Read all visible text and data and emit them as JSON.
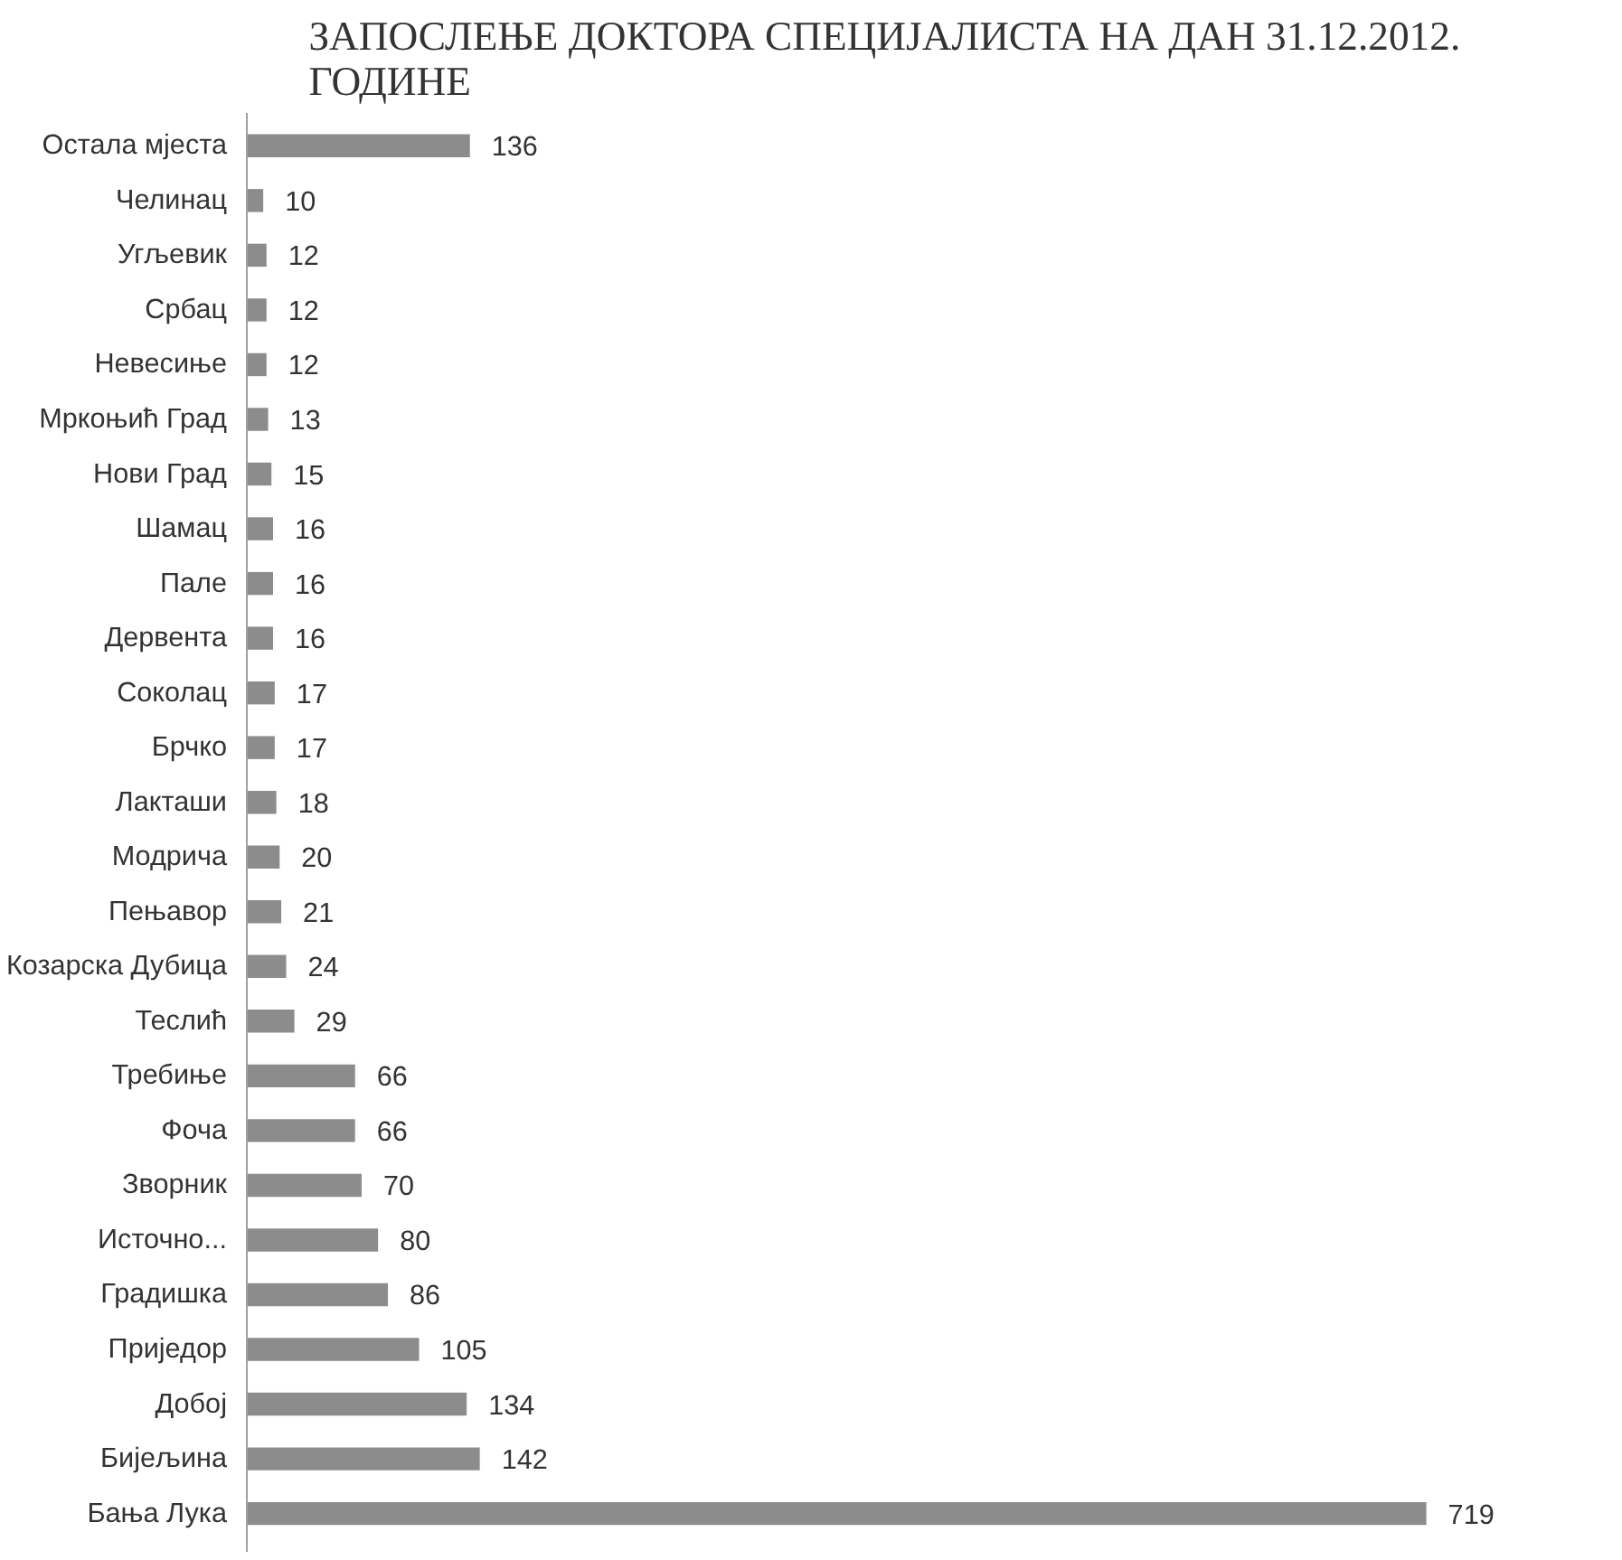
{
  "chart_data": {
    "type": "bar",
    "orientation": "horizontal",
    "title": "ЗАПОСЛЕЊЕ ДОКТОРА СПЕЦИЈАЛИСТА НА ДАН  31.12.2012. ГОДИНЕ",
    "categories": [
      "Остала мјеста",
      "Челинац",
      "Угљевик",
      "Србац",
      "Невесиње",
      "Мркоњић Град",
      "Нови Град",
      "Шамац",
      "Пале",
      "Дервента",
      "Соколац",
      "Брчко",
      "Лакташи",
      "Модрича",
      "Пењавор",
      "Козарска Дубица",
      "Теслић",
      "Требиње",
      "Фоча",
      "Зворник",
      "Источно...",
      "Градишка",
      "Приједор",
      "Добој",
      "Бијељина",
      "Бања Лука"
    ],
    "values": [
      136,
      10,
      12,
      12,
      12,
      13,
      15,
      16,
      16,
      16,
      17,
      17,
      18,
      20,
      21,
      24,
      29,
      66,
      66,
      70,
      80,
      86,
      105,
      134,
      142,
      719
    ],
    "color": "#8c8c8c",
    "data_labels": true
  }
}
